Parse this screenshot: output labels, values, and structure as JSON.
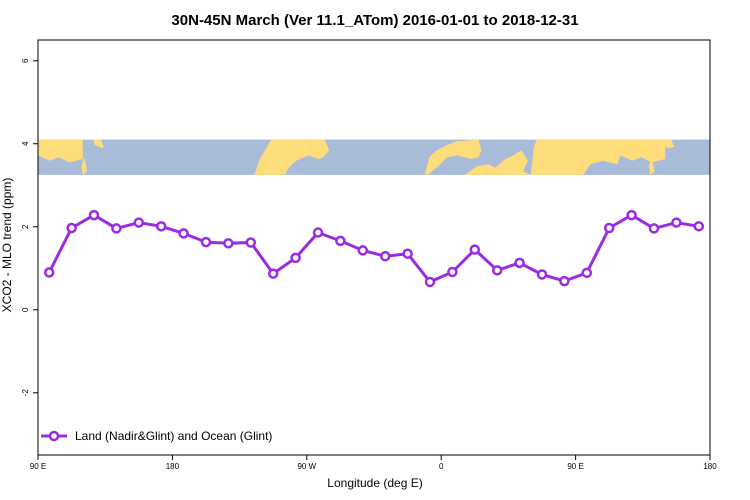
{
  "chart_data": {
    "type": "line",
    "title": "30N-45N March (Ver 11.1_ATom)   2016-01-01 to 2018-12-31",
    "xlabel": "Longitude (deg E)",
    "ylabel": "XCO2 - MLO trend (ppm)",
    "xlim": [
      90,
      540
    ],
    "ylim": [
      -3.5,
      6.5
    ],
    "x_ticks": [
      {
        "value": 90,
        "label": "90 E"
      },
      {
        "value": 180,
        "label": "180"
      },
      {
        "value": 270,
        "label": "90 W"
      },
      {
        "value": 360,
        "label": "0"
      },
      {
        "value": 450,
        "label": "90 E"
      },
      {
        "value": 540,
        "label": "180"
      }
    ],
    "y_ticks": [
      {
        "value": -2,
        "label": "-2"
      },
      {
        "value": 0,
        "label": "0"
      },
      {
        "value": 2,
        "label": "2"
      },
      {
        "value": 4,
        "label": "4"
      },
      {
        "value": 6,
        "label": "6"
      }
    ],
    "grid": false,
    "legend_position": "bottom-left",
    "map_strip": {
      "y_range": [
        3.25,
        4.1
      ],
      "ocean_color": "#a8bcd9",
      "land_color": "#fddc7a"
    },
    "series": [
      {
        "name": "Land (Nadir&Glint) and Ocean (Glint)",
        "color": "#9b2be2",
        "x": [
          97.5,
          112.5,
          127.5,
          142.5,
          157.5,
          172.5,
          187.5,
          202.5,
          217.5,
          232.5,
          247.5,
          262.5,
          277.5,
          292.5,
          307.5,
          322.5,
          337.5,
          352.5,
          367.5,
          382.5,
          397.5,
          412.5,
          427.5,
          442.5,
          457.5,
          472.5,
          487.5,
          502.5,
          517.5,
          532.5
        ],
        "values": [
          0.9,
          1.97,
          2.28,
          1.96,
          2.1,
          2.01,
          1.84,
          1.63,
          1.6,
          1.62,
          0.87,
          1.25,
          1.86,
          1.66,
          1.43,
          1.29,
          1.35,
          0.67,
          0.91,
          1.45,
          0.95,
          1.13,
          0.85,
          0.69,
          0.89,
          1.97,
          2.28,
          1.96,
          2.1,
          2.01
        ]
      }
    ]
  }
}
